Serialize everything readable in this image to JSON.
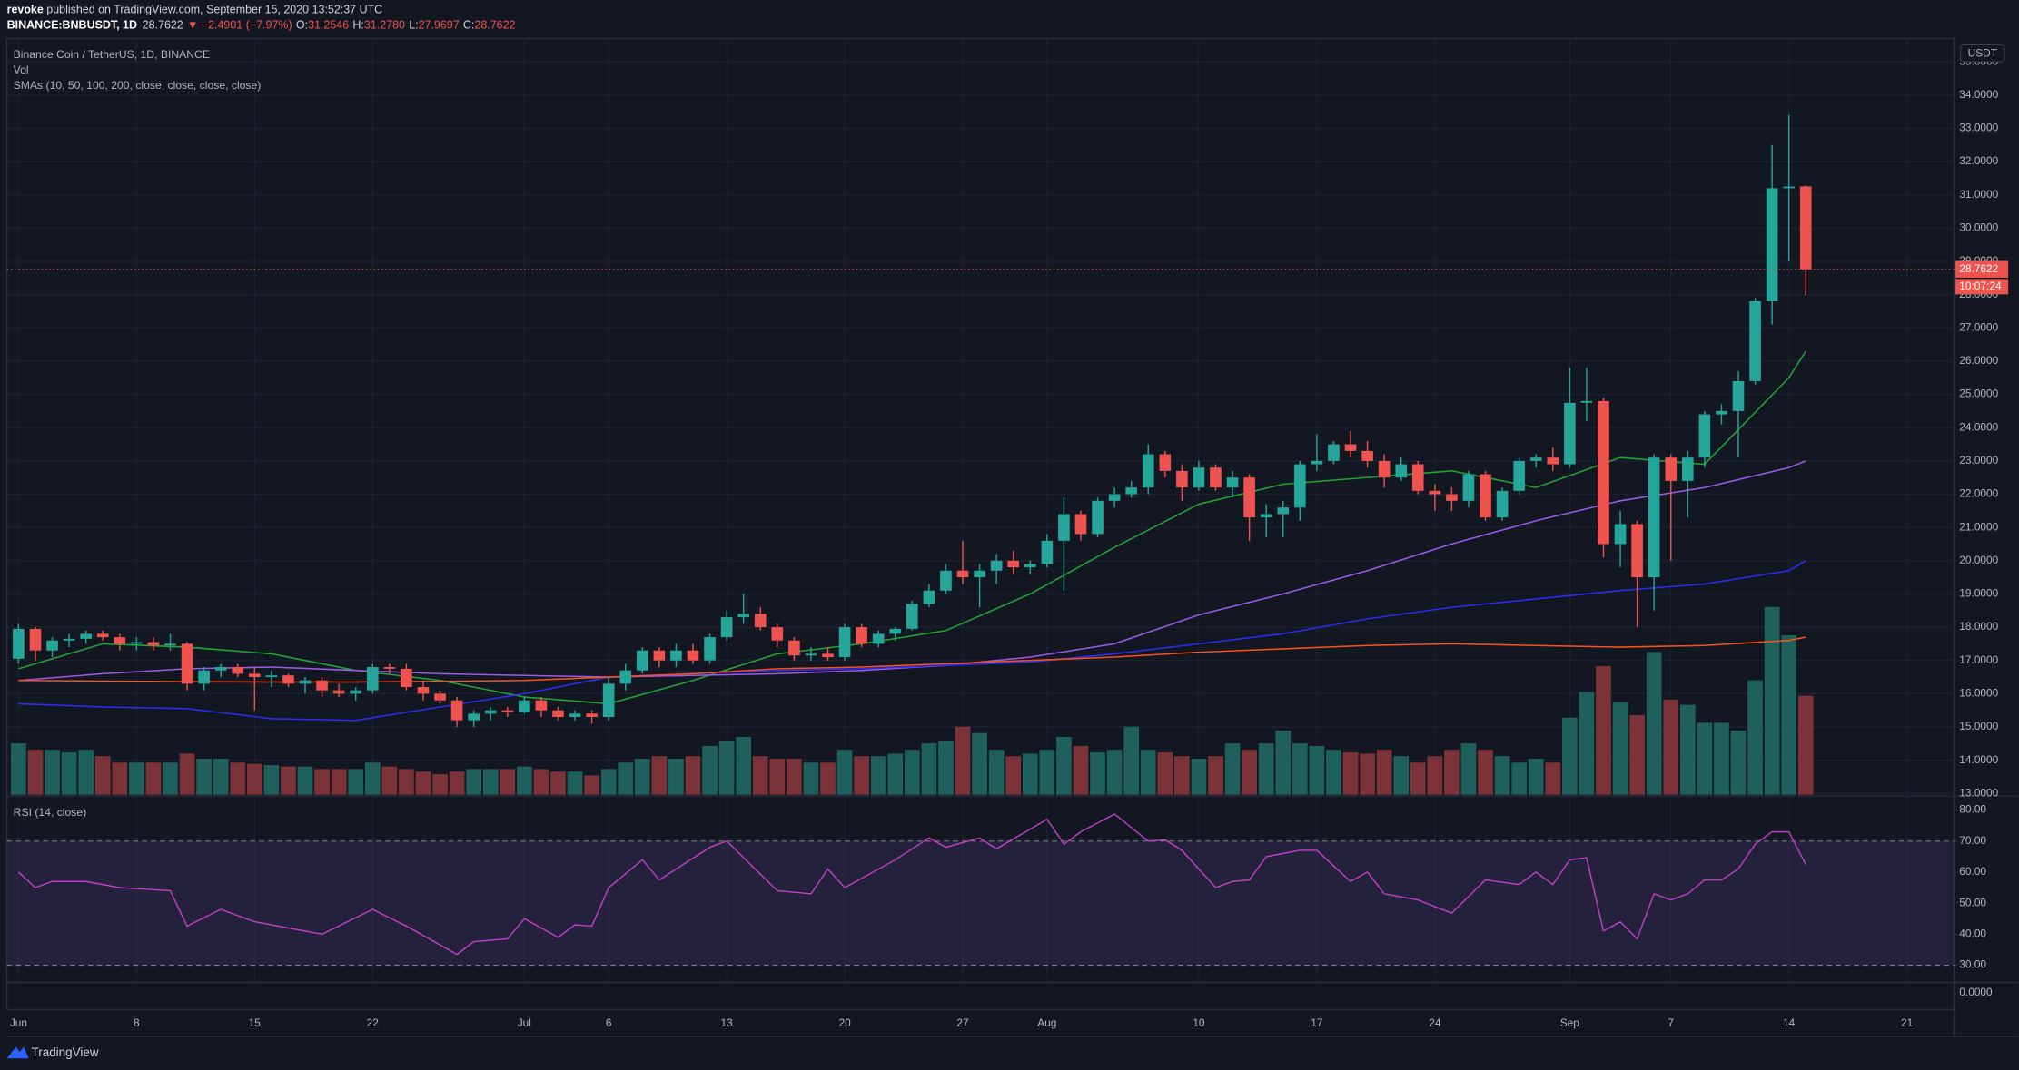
{
  "header": {
    "author": "revoke",
    "published": " published on TradingView.com, September 15, 2020 13:52:37 UTC",
    "symbol": "BINANCE:BNBUSDT, 1D",
    "change": "▼ −2.4901 (−7.97%)",
    "ohlc": [
      {
        "label": "O:",
        "value": "31.2546"
      },
      {
        "label": "H:",
        "value": "31.2780"
      },
      {
        "label": "L:",
        "value": "27.9697"
      },
      {
        "label": "C:",
        "value": "28.7622"
      }
    ]
  },
  "footer": {
    "brand": "TradingView"
  },
  "chart_data": {
    "type": "candlestick",
    "title": "Binance Coin / TetherUS, 1D, BINANCE",
    "volume_label": "Vol",
    "sma_label": "SMAs (10, 50, 100, 200, close, close, close, close)",
    "currency": "USDT",
    "countdown": "10:07:24",
    "bottom_label": "0.0000",
    "up_color": "#26a69a",
    "down_color": "#ef5350",
    "volume_up_color": "#1f5f5c",
    "volume_down_color": "#7b3238",
    "grid": true,
    "xlim": [
      -0.69,
      114.8
    ],
    "xticks": [
      {
        "value": 0,
        "label": "Jun"
      },
      {
        "value": 7,
        "label": "8"
      },
      {
        "value": 14,
        "label": "15"
      },
      {
        "value": 21,
        "label": "22"
      },
      {
        "value": 30,
        "label": "Jul"
      },
      {
        "value": 35,
        "label": "6"
      },
      {
        "value": 42,
        "label": "13"
      },
      {
        "value": 49,
        "label": "20"
      },
      {
        "value": 56,
        "label": "27"
      },
      {
        "value": 61,
        "label": "Aug"
      },
      {
        "value": 70,
        "label": "10"
      },
      {
        "value": 77,
        "label": "17"
      },
      {
        "value": 84,
        "label": "24"
      },
      {
        "value": 92,
        "label": "Sep"
      },
      {
        "value": 98,
        "label": "7"
      },
      {
        "value": 105,
        "label": "14"
      },
      {
        "value": 112,
        "label": "21"
      }
    ],
    "ylim": [
      12.96,
      35.7
    ],
    "yticks": [
      {
        "value": 13,
        "label": "13.0000"
      },
      {
        "value": 14,
        "label": "14.0000"
      },
      {
        "value": 15,
        "label": "15.0000"
      },
      {
        "value": 16,
        "label": "16.0000"
      },
      {
        "value": 17,
        "label": "17.0000"
      },
      {
        "value": 18,
        "label": "18.0000"
      },
      {
        "value": 19,
        "label": "19.0000"
      },
      {
        "value": 20,
        "label": "20.0000"
      },
      {
        "value": 21,
        "label": "21.0000"
      },
      {
        "value": 22,
        "label": "22.0000"
      },
      {
        "value": 23,
        "label": "23.0000"
      },
      {
        "value": 24,
        "label": "24.0000"
      },
      {
        "value": 25,
        "label": "25.0000"
      },
      {
        "value": 26,
        "label": "26.0000"
      },
      {
        "value": 27,
        "label": "27.0000"
      },
      {
        "value": 28,
        "label": "28.0000"
      },
      {
        "value": 29,
        "label": "29.0000"
      },
      {
        "value": 30,
        "label": "30.0000"
      },
      {
        "value": 31,
        "label": "31.0000"
      },
      {
        "value": 32,
        "label": "32.0000"
      },
      {
        "value": 33,
        "label": "33.0000"
      },
      {
        "value": 34,
        "label": "34.0000"
      },
      {
        "value": 35,
        "label": "35.0000"
      }
    ],
    "open": [
      17.05,
      17.95,
      17.3,
      17.6,
      17.65,
      17.8,
      17.7,
      17.5,
      17.55,
      17.45,
      17.5,
      16.3,
      16.7,
      16.8,
      16.6,
      16.5,
      16.55,
      16.3,
      16.4,
      16.1,
      16.0,
      16.1,
      16.8,
      16.75,
      16.2,
      16.0,
      15.8,
      15.2,
      15.4,
      15.5,
      15.45,
      15.8,
      15.5,
      15.3,
      15.4,
      15.3,
      16.3,
      16.7,
      17.3,
      17.0,
      17.3,
      17.0,
      17.7,
      18.3,
      18.4,
      18.0,
      17.6,
      17.15,
      17.2,
      17.1,
      18.0,
      17.5,
      17.8,
      17.95,
      18.7,
      19.1,
      19.7,
      19.5,
      19.7,
      20.0,
      19.8,
      19.9,
      20.6,
      21.4,
      20.8,
      21.8,
      22.0,
      22.2,
      23.2,
      22.7,
      22.2,
      22.8,
      22.2,
      22.5,
      21.3,
      21.4,
      21.6,
      22.9,
      23.0,
      23.5,
      23.3,
      23.0,
      22.5,
      22.9,
      22.1,
      22.0,
      21.8,
      22.6,
      21.3,
      22.1,
      23.0,
      23.1,
      22.9,
      24.75,
      24.8,
      20.5,
      21.1,
      19.5,
      23.1,
      22.4,
      23.1,
      24.4,
      24.5,
      25.4,
      27.8,
      31.2,
      31.2546
    ],
    "high": [
      18.1,
      18.0,
      17.7,
      17.8,
      17.9,
      17.9,
      17.8,
      17.7,
      17.7,
      17.8,
      17.55,
      16.8,
      16.9,
      16.9,
      16.8,
      16.7,
      16.6,
      16.5,
      16.5,
      16.3,
      16.2,
      16.9,
      16.9,
      16.9,
      16.4,
      16.1,
      15.9,
      15.5,
      15.6,
      15.6,
      15.9,
      15.9,
      15.6,
      15.5,
      15.5,
      16.5,
      16.9,
      17.4,
      17.4,
      17.5,
      17.5,
      17.8,
      18.5,
      19.0,
      18.6,
      18.1,
      17.7,
      17.4,
      17.4,
      18.1,
      18.1,
      17.9,
      18.0,
      18.8,
      19.3,
      19.9,
      20.6,
      19.9,
      20.2,
      20.3,
      20.0,
      20.8,
      21.9,
      21.5,
      21.9,
      22.2,
      22.4,
      23.5,
      23.3,
      22.9,
      23.0,
      22.9,
      22.7,
      22.6,
      21.7,
      21.8,
      23.0,
      23.8,
      23.6,
      23.9,
      23.6,
      23.2,
      23.1,
      23.0,
      22.3,
      22.2,
      22.7,
      22.7,
      22.2,
      23.1,
      23.2,
      23.4,
      25.8,
      25.8,
      24.9,
      21.5,
      21.2,
      23.2,
      23.2,
      23.3,
      24.5,
      24.7,
      25.7,
      27.9,
      32.5,
      33.4,
      31.278
    ],
    "low": [
      16.9,
      17.0,
      17.1,
      17.4,
      17.5,
      17.6,
      17.3,
      17.3,
      17.3,
      17.3,
      16.1,
      16.1,
      16.5,
      16.5,
      15.5,
      16.2,
      16.2,
      16.0,
      15.9,
      15.9,
      15.8,
      16.0,
      16.6,
      16.1,
      15.8,
      15.7,
      15.0,
      15.0,
      15.2,
      15.3,
      15.4,
      15.3,
      15.2,
      15.2,
      15.1,
      15.2,
      16.1,
      16.6,
      16.8,
      16.8,
      16.9,
      16.9,
      17.6,
      18.1,
      17.9,
      17.4,
      17.0,
      17.0,
      17.0,
      17.0,
      17.4,
      17.4,
      17.6,
      17.9,
      18.6,
      19.0,
      19.3,
      18.6,
      19.3,
      19.6,
      19.6,
      19.8,
      19.1,
      20.6,
      20.7,
      21.6,
      21.9,
      22.0,
      22.5,
      21.8,
      22.1,
      22.1,
      21.9,
      20.6,
      20.7,
      20.7,
      21.2,
      22.7,
      22.9,
      23.1,
      22.8,
      22.2,
      22.4,
      22.0,
      21.5,
      21.5,
      21.6,
      21.2,
      21.2,
      22.0,
      22.8,
      22.7,
      22.8,
      24.2,
      20.1,
      19.8,
      18.0,
      18.5,
      20.0,
      21.3,
      22.8,
      24.1,
      23.1,
      25.3,
      27.1,
      29.0,
      27.9697
    ],
    "close": [
      17.95,
      17.3,
      17.6,
      17.65,
      17.8,
      17.7,
      17.5,
      17.55,
      17.45,
      17.5,
      16.3,
      16.7,
      16.8,
      16.6,
      16.5,
      16.55,
      16.3,
      16.4,
      16.1,
      16.0,
      16.1,
      16.8,
      16.75,
      16.2,
      16.0,
      15.8,
      15.2,
      15.4,
      15.5,
      15.45,
      15.8,
      15.5,
      15.3,
      15.4,
      15.3,
      16.3,
      16.7,
      17.3,
      17.0,
      17.3,
      17.0,
      17.7,
      18.3,
      18.4,
      18.0,
      17.6,
      17.15,
      17.2,
      17.1,
      18.0,
      17.5,
      17.8,
      17.95,
      18.7,
      19.1,
      19.7,
      19.5,
      19.7,
      20.0,
      19.8,
      19.9,
      20.6,
      21.4,
      20.8,
      21.8,
      22.0,
      22.2,
      23.2,
      22.7,
      22.2,
      22.8,
      22.2,
      22.5,
      21.3,
      21.4,
      21.6,
      22.9,
      23.0,
      23.5,
      23.3,
      23.0,
      22.5,
      22.9,
      22.1,
      22.0,
      21.8,
      22.6,
      21.3,
      22.1,
      23.0,
      23.1,
      22.9,
      24.75,
      24.8,
      20.5,
      21.1,
      19.5,
      23.1,
      22.4,
      23.1,
      24.4,
      24.5,
      25.4,
      27.8,
      31.2,
      31.25,
      28.7622
    ],
    "volume": [
      40,
      35,
      35,
      33,
      35,
      30,
      25,
      25,
      25,
      25,
      32,
      28,
      28,
      25,
      24,
      23,
      22,
      22,
      20,
      20,
      20,
      25,
      22,
      20,
      18,
      16,
      18,
      20,
      20,
      20,
      22,
      20,
      18,
      18,
      15,
      20,
      25,
      28,
      30,
      28,
      30,
      38,
      42,
      45,
      30,
      28,
      28,
      25,
      25,
      35,
      30,
      30,
      32,
      35,
      40,
      42,
      53,
      48,
      35,
      30,
      32,
      35,
      45,
      38,
      33,
      35,
      53,
      35,
      33,
      30,
      28,
      30,
      40,
      35,
      40,
      50,
      40,
      38,
      35,
      33,
      32,
      35,
      30,
      25,
      30,
      35,
      40,
      35,
      30,
      25,
      28,
      25,
      60,
      80,
      100,
      72,
      62,
      111,
      74,
      70,
      56,
      56,
      50,
      89,
      146,
      124,
      77
    ],
    "sma": [
      {
        "color": "#21a336",
        "x": [
          0,
          5,
          10,
          15,
          20,
          25,
          30,
          35,
          40,
          45,
          50,
          55,
          60,
          65,
          70,
          75,
          80,
          85,
          90,
          95,
          100,
          105,
          106
        ],
        "values": [
          16.75,
          17.5,
          17.4,
          17.2,
          16.7,
          16.4,
          15.9,
          15.7,
          16.4,
          17.2,
          17.5,
          17.9,
          19.0,
          20.4,
          21.7,
          22.3,
          22.5,
          22.7,
          22.2,
          23.1,
          22.9,
          25.5,
          26.3
        ]
      },
      {
        "color": "#9b59e8",
        "x": [
          0,
          5,
          10,
          15,
          20,
          25,
          30,
          35,
          40,
          45,
          50,
          55,
          60,
          65,
          70,
          75,
          80,
          85,
          90,
          95,
          100,
          105,
          106
        ],
        "values": [
          16.4,
          16.6,
          16.75,
          16.8,
          16.7,
          16.6,
          16.55,
          16.5,
          16.55,
          16.6,
          16.7,
          16.85,
          17.1,
          17.5,
          18.37,
          19.0,
          19.7,
          20.5,
          21.2,
          21.8,
          22.2,
          22.8,
          23.0
        ]
      },
      {
        "color": "#2c2cf0",
        "x": [
          0,
          5,
          10,
          15,
          20,
          25,
          30,
          35,
          40,
          45,
          50,
          55,
          60,
          65,
          70,
          75,
          80,
          85,
          90,
          95,
          100,
          105,
          106
        ],
        "values": [
          15.7,
          15.6,
          15.55,
          15.25,
          15.2,
          15.6,
          16.0,
          16.5,
          16.6,
          16.7,
          16.75,
          16.85,
          16.95,
          17.2,
          17.5,
          17.8,
          18.25,
          18.6,
          18.85,
          19.1,
          19.3,
          19.7,
          20.0
        ]
      },
      {
        "color": "#f4511e",
        "x": [
          0,
          5,
          10,
          15,
          20,
          25,
          30,
          35,
          40,
          45,
          50,
          55,
          60,
          65,
          70,
          75,
          80,
          85,
          90,
          95,
          100,
          105,
          106
        ],
        "values": [
          16.4,
          16.38,
          16.36,
          16.35,
          16.35,
          16.37,
          16.4,
          16.5,
          16.6,
          16.75,
          16.8,
          16.9,
          17.0,
          17.1,
          17.25,
          17.35,
          17.45,
          17.5,
          17.45,
          17.4,
          17.45,
          17.6,
          17.7
        ]
      }
    ],
    "rsi": {
      "label": "RSI (14, close)",
      "color": "#c23fc8",
      "band_color": "#7e57c2",
      "ylim": [
        24.4,
        84.1
      ],
      "yticks": [
        {
          "value": 30,
          "label": "30.00"
        },
        {
          "value": 40,
          "label": "40.00"
        },
        {
          "value": 50,
          "label": "50.00"
        },
        {
          "value": 60,
          "label": "60.00"
        },
        {
          "value": 70,
          "label": "70.00"
        },
        {
          "value": 80,
          "label": "80.00"
        }
      ],
      "band": [
        30,
        70
      ],
      "x": [
        0,
        1,
        2,
        4,
        6,
        9,
        10,
        12,
        14,
        18,
        21,
        23,
        26,
        27,
        29,
        30,
        32,
        33,
        34,
        35,
        37,
        38,
        41,
        42,
        45,
        47,
        48,
        49,
        52,
        54,
        55,
        57,
        58,
        61,
        62,
        63,
        65,
        67,
        68,
        69,
        71,
        72,
        73,
        74,
        76,
        77,
        79,
        80,
        81,
        83,
        85,
        87,
        89,
        90,
        91,
        92,
        93,
        94,
        95,
        96,
        97,
        98,
        99,
        100,
        101,
        102,
        103,
        104,
        105,
        106
      ],
      "values": [
        60,
        55,
        57,
        57,
        55,
        54,
        42.6,
        48,
        44,
        40,
        48,
        42.6,
        33.5,
        37.6,
        38.5,
        45,
        39,
        43,
        42.6,
        55,
        64,
        57.5,
        68,
        70,
        54,
        53,
        61,
        55,
        64,
        71,
        68,
        71,
        67.5,
        77,
        69,
        73,
        78.7,
        70,
        70.4,
        67,
        55,
        57,
        57.5,
        65,
        67,
        67,
        57,
        60,
        53,
        51,
        46.8,
        57.5,
        56,
        60,
        56,
        64,
        64.6,
        41,
        44,
        38.5,
        53,
        51,
        53,
        57.5,
        57.5,
        61,
        69,
        73,
        73,
        62.5
      ]
    }
  }
}
